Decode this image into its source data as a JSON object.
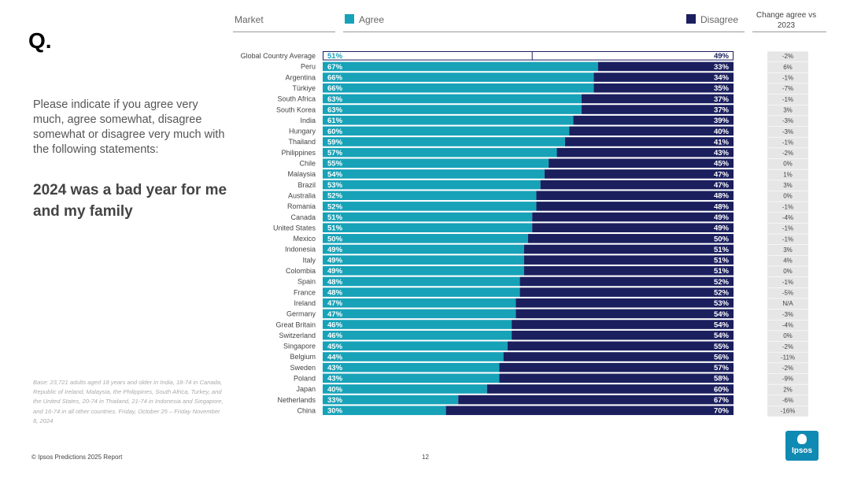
{
  "q_label": "Q.",
  "question": "Please indicate if you agree very much, agree somewhat, disagree somewhat or disagree very much with the following statements:",
  "statement": "2024 was a bad year for me and my family",
  "base_note": "Base: 23,721 adults aged 18 years and older in India, 18-74 in Canada, Republic of Ireland, Malaysia, the Philippines, South Africa, Turkey, and the United States, 20-74 in Thailand, 21-74 in Indonesia and Singapore, and 16-74 in all other countries. Friday, October 25 – Friday November 8, 2024",
  "footer": "© Ipsos Predictions 2025 Report",
  "page_number": "12",
  "logo_text": "Ipsos",
  "headers": {
    "market": "Market",
    "agree": "Agree",
    "disagree": "Disagree",
    "change": "Change agree vs 2023"
  },
  "colors": {
    "agree": "#17a2b8",
    "disagree": "#1b1f5e",
    "global_outline": "#1b1f5e",
    "change_bg": "#e6e6e6"
  },
  "chart_data": {
    "type": "bar",
    "orientation": "horizontal",
    "stacked": true,
    "title": "2024 was a bad year for me and my family",
    "xlim": [
      0,
      100
    ],
    "categories": [
      "Global Country Average",
      "Peru",
      "Argentina",
      "Türkiye",
      "South Africa",
      "South Korea",
      "India",
      "Hungary",
      "Thailand",
      "Philippines",
      "Chile",
      "Malaysia",
      "Brazil",
      "Australia",
      "Romania",
      "Canada",
      "United States",
      "Mexico",
      "Indonesia",
      "Italy",
      "Colombia",
      "Spain",
      "France",
      "Ireland",
      "Germany",
      "Great Britain",
      "Switzerland",
      "Singapore",
      "Belgium",
      "Sweden",
      "Poland",
      "Japan",
      "Netherlands",
      "China"
    ],
    "series": [
      {
        "name": "Agree",
        "values": [
          51,
          67,
          66,
          66,
          63,
          63,
          61,
          60,
          59,
          57,
          55,
          54,
          53,
          52,
          52,
          51,
          51,
          50,
          49,
          49,
          49,
          48,
          48,
          47,
          47,
          46,
          46,
          45,
          44,
          43,
          43,
          40,
          33,
          30
        ]
      },
      {
        "name": "Disagree",
        "values": [
          49,
          33,
          34,
          35,
          37,
          37,
          39,
          40,
          41,
          43,
          45,
          47,
          47,
          48,
          48,
          49,
          49,
          50,
          51,
          51,
          51,
          52,
          52,
          53,
          54,
          54,
          54,
          55,
          56,
          57,
          58,
          60,
          67,
          70
        ]
      }
    ],
    "agree_labels": [
      "51%",
      "67%",
      "66%",
      "66%",
      "63%",
      "63%",
      "61%",
      "60%",
      "59%",
      "57%",
      "55%",
      "54%",
      "53%",
      "52%",
      "52%",
      "51%",
      "51%",
      "50%",
      "49%",
      "49%",
      "49%",
      "48%",
      "48%",
      "47%",
      "47%",
      "46%",
      "46%",
      "45%",
      "44%",
      "43%",
      "43%",
      "40%",
      "33%",
      "30%"
    ],
    "disagree_labels": [
      "49%",
      "33%",
      "34%",
      "35%",
      "37%",
      "37%",
      "39%",
      "40%",
      "41%",
      "43%",
      "45%",
      "47%",
      "47%",
      "48%",
      "48%",
      "49%",
      "49%",
      "50%",
      "51%",
      "51%",
      "51%",
      "52%",
      "52%",
      "53%",
      "54%",
      "54%",
      "54%",
      "55%",
      "56%",
      "57%",
      "58%",
      "60%",
      "67%",
      "70%"
    ],
    "change_vs_2023": [
      "-2%",
      "6%",
      "-1%",
      "-7%",
      "-1%",
      "3%",
      "-3%",
      "-3%",
      "-1%",
      "-2%",
      "0%",
      "1%",
      "3%",
      "0%",
      "-1%",
      "-4%",
      "-1%",
      "-1%",
      "3%",
      "4%",
      "0%",
      "-1%",
      "-5%",
      "N/A",
      "-3%",
      "-4%",
      "0%",
      "-2%",
      "-11%",
      "-2%",
      "-9%",
      "2%",
      "-6%",
      "-16%"
    ]
  }
}
